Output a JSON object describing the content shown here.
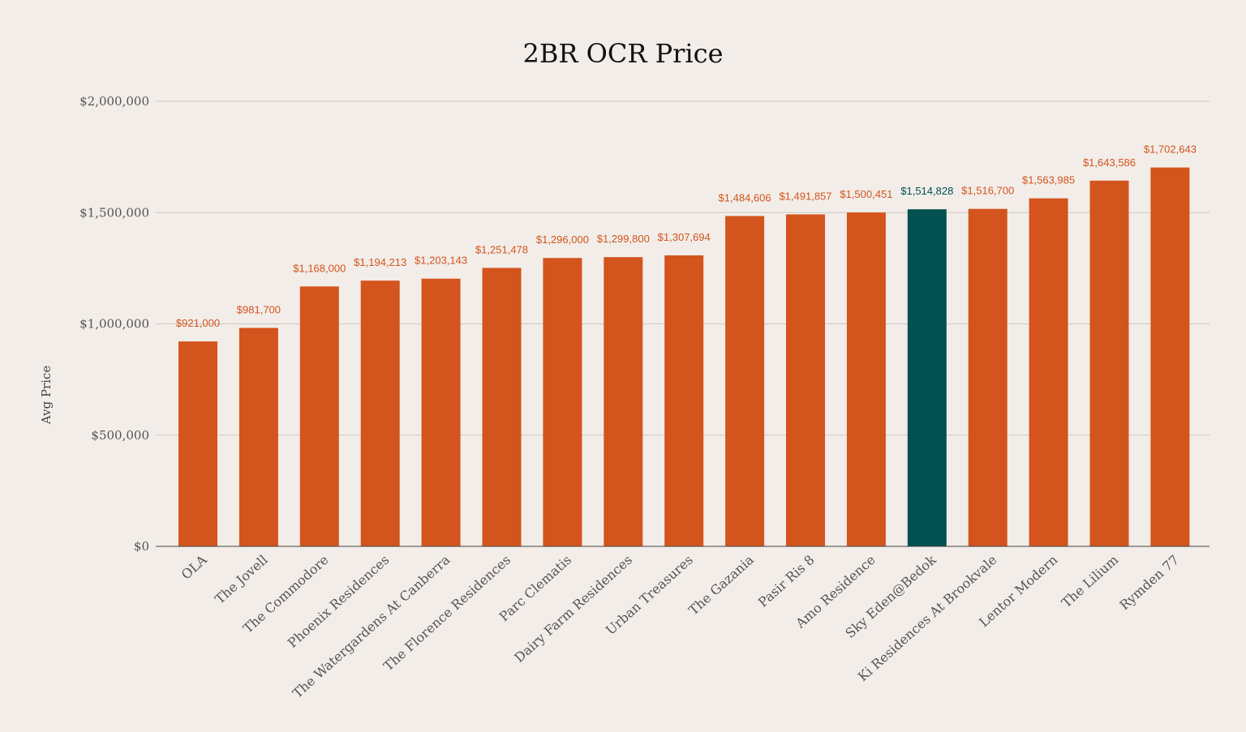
{
  "chart_data": {
    "type": "bar",
    "title": "2BR OCR Price",
    "xlabel": "",
    "ylabel": "Avg Price",
    "ylim": [
      0,
      2000000
    ],
    "yticks": [
      0,
      500000,
      1000000,
      1500000,
      2000000
    ],
    "ytick_labels": [
      "$0",
      "$500,000",
      "$1,000,000",
      "$1,500,000",
      "$2,000,000"
    ],
    "grid": true,
    "legend": "none",
    "colors": {
      "default_bar": "#d4541d",
      "highlight_bar": "#00514f",
      "background": "#f2ede8"
    },
    "highlight_category": "Sky Eden@Bedok",
    "categories": [
      "OLA",
      "The Jovell",
      "The Commodore",
      "Phoenix Residences",
      "The Watergardens At Canberra",
      "The Florence Residences",
      "Parc Clematis",
      "Dairy Farm Residences",
      "Urban Treasures",
      "The Gazania",
      "Pasir Ris 8",
      "Amo Residence",
      "Sky Eden@Bedok",
      "Ki Residences At Brookvale",
      "Lentor Modern",
      "The Lilium",
      "Rymden 77"
    ],
    "values": [
      921000,
      981700,
      1168000,
      1194213,
      1203143,
      1251478,
      1296000,
      1299800,
      1307694,
      1484606,
      1491857,
      1500451,
      1514828,
      1516700,
      1563985,
      1643586,
      1702643
    ],
    "data_labels": [
      "$921,000",
      "$981,700",
      "$1,168,000",
      "$1,194,213",
      "$1,203,143",
      "$1,251,478",
      "$1,296,000",
      "$1,299,800",
      "$1,307,694",
      "$1,484,606",
      "$1,491,857",
      "$1,500,451",
      "$1,514,828",
      "$1,516,700",
      "$1,563,985",
      "$1,643,586",
      "$1,702,643"
    ]
  }
}
